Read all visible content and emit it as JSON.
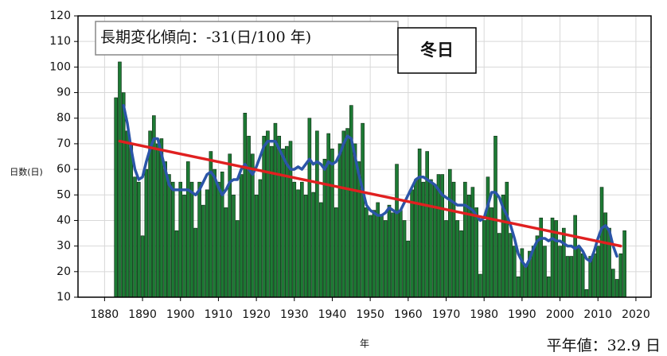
{
  "chart_data": {
    "type": "bar",
    "title": "冬日",
    "annotation": "長期変化傾向：-31(日/100 年)",
    "normal_label": "平年値：32.9 日",
    "xlabel": "年",
    "ylabel": "日数(日)",
    "xlim": [
      1873,
      2024
    ],
    "ylim": [
      10,
      120
    ],
    "xticks": [
      1880,
      1890,
      1900,
      1910,
      1920,
      1930,
      1940,
      1950,
      1960,
      1970,
      1980,
      1990,
      2000,
      2010,
      2020
    ],
    "yticks": [
      10,
      20,
      30,
      40,
      50,
      60,
      70,
      80,
      90,
      100,
      110,
      120
    ],
    "grid": true,
    "series": [
      {
        "type": "bar",
        "color": "#1d7a34",
        "x": [
          1883,
          1884,
          1885,
          1886,
          1887,
          1888,
          1889,
          1890,
          1891,
          1892,
          1893,
          1894,
          1895,
          1896,
          1897,
          1898,
          1899,
          1900,
          1901,
          1902,
          1903,
          1904,
          1905,
          1906,
          1907,
          1908,
          1909,
          1910,
          1911,
          1912,
          1913,
          1914,
          1915,
          1916,
          1917,
          1918,
          1919,
          1920,
          1921,
          1922,
          1923,
          1924,
          1925,
          1926,
          1927,
          1928,
          1929,
          1930,
          1931,
          1932,
          1933,
          1934,
          1935,
          1936,
          1937,
          1938,
          1939,
          1940,
          1941,
          1942,
          1943,
          1944,
          1945,
          1946,
          1947,
          1948,
          1949,
          1950,
          1951,
          1952,
          1953,
          1954,
          1955,
          1956,
          1957,
          1958,
          1959,
          1960,
          1961,
          1962,
          1963,
          1964,
          1965,
          1966,
          1967,
          1968,
          1969,
          1970,
          1971,
          1972,
          1973,
          1974,
          1975,
          1976,
          1977,
          1978,
          1979,
          1980,
          1981,
          1982,
          1983,
          1984,
          1985,
          1986,
          1987,
          1988,
          1989,
          1990,
          1991,
          1992,
          1993,
          1994,
          1995,
          1996,
          1997,
          1998,
          1999,
          2000,
          2001,
          2002,
          2003,
          2004,
          2005,
          2006,
          2007,
          2008,
          2009,
          2010,
          2011,
          2012,
          2013,
          2014,
          2015,
          2016,
          2017
        ],
        "values": [
          88,
          102,
          90,
          75,
          70,
          57,
          55,
          34,
          60,
          75,
          81,
          70,
          72,
          63,
          58,
          55,
          36,
          55,
          50,
          63,
          55,
          37,
          55,
          46,
          52,
          67,
          60,
          55,
          59,
          45,
          66,
          50,
          40,
          58,
          82,
          73,
          66,
          50,
          56,
          73,
          75,
          69,
          78,
          73,
          68,
          69,
          71,
          55,
          52,
          55,
          50,
          80,
          51,
          75,
          47,
          64,
          74,
          68,
          45,
          70,
          75,
          76,
          85,
          70,
          63,
          78,
          45,
          42,
          44,
          47,
          42,
          40,
          46,
          43,
          62,
          44,
          40,
          32,
          52,
          56,
          68,
          55,
          67,
          56,
          54,
          58,
          58,
          40,
          60,
          55,
          40,
          36,
          55,
          50,
          53,
          45,
          19,
          40,
          57,
          45,
          73,
          35,
          50,
          55,
          35,
          30,
          18,
          29,
          22,
          28,
          30,
          34,
          41,
          30,
          18,
          41,
          40,
          30,
          37,
          26,
          26,
          42,
          30,
          27,
          13,
          26,
          27,
          30,
          53,
          43,
          37,
          21,
          17,
          27,
          36
        ]
      },
      {
        "type": "line",
        "color": "#2b55a8",
        "x": [
          1885,
          1886,
          1887,
          1888,
          1889,
          1890,
          1891,
          1892,
          1893,
          1894,
          1895,
          1896,
          1897,
          1898,
          1899,
          1900,
          1901,
          1902,
          1903,
          1904,
          1905,
          1906,
          1907,
          1908,
          1909,
          1910,
          1911,
          1912,
          1913,
          1914,
          1915,
          1916,
          1917,
          1918,
          1919,
          1920,
          1921,
          1922,
          1923,
          1924,
          1925,
          1926,
          1927,
          1928,
          1929,
          1930,
          1931,
          1932,
          1933,
          1934,
          1935,
          1936,
          1937,
          1938,
          1939,
          1940,
          1941,
          1942,
          1943,
          1944,
          1945,
          1946,
          1947,
          1948,
          1949,
          1950,
          1951,
          1952,
          1953,
          1954,
          1955,
          1956,
          1957,
          1958,
          1959,
          1960,
          1961,
          1962,
          1963,
          1964,
          1965,
          1966,
          1967,
          1968,
          1969,
          1970,
          1971,
          1972,
          1973,
          1974,
          1975,
          1976,
          1977,
          1978,
          1979,
          1980,
          1981,
          1982,
          1983,
          1984,
          1985,
          1986,
          1987,
          1988,
          1989,
          1990,
          1991,
          1992,
          1993,
          1994,
          1995,
          1996,
          1997,
          1998,
          1999,
          2000,
          2001,
          2002,
          2003,
          2004,
          2005,
          2006,
          2007,
          2008,
          2009,
          2010,
          2011,
          2012,
          2013,
          2014,
          2015
        ],
        "values": [
          85,
          78,
          68,
          60,
          56,
          57,
          63,
          68,
          72,
          72,
          66,
          60,
          54,
          52,
          52,
          52,
          52,
          52,
          51,
          50,
          52,
          55,
          58,
          59,
          57,
          53,
          50,
          52,
          55,
          56,
          56,
          60,
          62,
          60,
          58,
          61,
          65,
          69,
          71,
          71,
          71,
          68,
          65,
          62,
          60,
          60,
          61,
          60,
          62,
          64,
          62,
          63,
          62,
          60,
          63,
          62,
          63,
          66,
          70,
          73,
          72,
          65,
          58,
          52,
          46,
          44,
          43,
          42,
          42,
          43,
          45,
          44,
          43,
          44,
          47,
          50,
          53,
          56,
          57,
          57,
          56,
          55,
          54,
          52,
          50,
          49,
          48,
          47,
          46,
          46,
          46,
          45,
          44,
          42,
          40,
          41,
          46,
          51,
          51,
          49,
          45,
          42,
          38,
          33,
          27,
          24,
          22,
          25,
          29,
          32,
          33,
          33,
          32,
          33,
          32,
          32,
          31,
          30,
          30,
          29,
          30,
          28,
          25,
          24,
          28,
          33,
          37,
          38,
          36,
          30,
          26
        ]
      },
      {
        "type": "line",
        "color": "#e02020",
        "x": [
          1884,
          2016
        ],
        "values": [
          71,
          30
        ]
      }
    ]
  }
}
